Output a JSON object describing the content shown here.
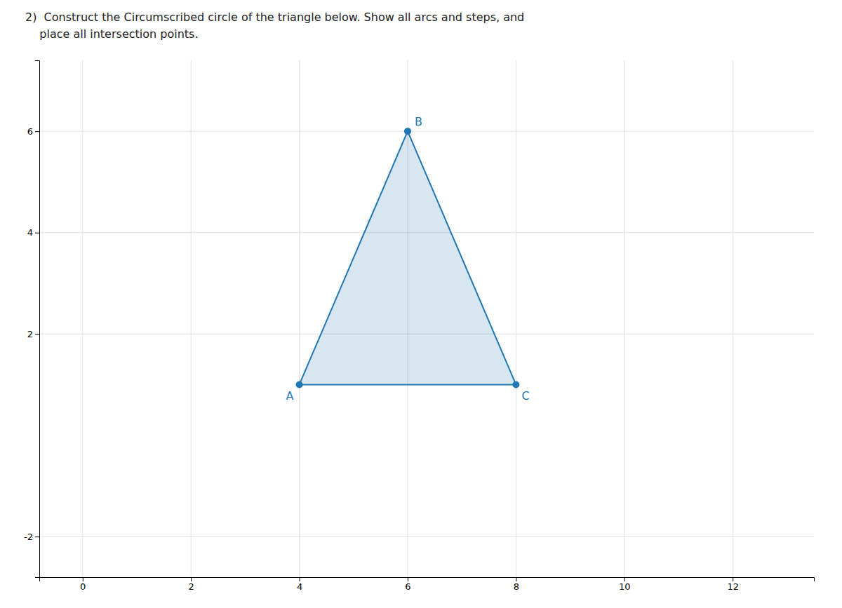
{
  "chart_data": {
    "type": "polygon",
    "title": "2)  Construct the Circumscribed circle of the triangle below. Show all arcs and steps, and",
    "subtitle": "    place all intersection points.",
    "x": [
      4,
      6,
      8
    ],
    "values": [
      1,
      6,
      1
    ],
    "annotations": [
      "A",
      "B",
      "C"
    ],
    "xlim": [
      -0.8,
      13.5
    ],
    "ylim": [
      -2.8,
      7.4
    ],
    "xticks": [
      0,
      2,
      4,
      6,
      8,
      10,
      12
    ],
    "yticks": [
      -2,
      2,
      4,
      6
    ],
    "grid": true
  }
}
